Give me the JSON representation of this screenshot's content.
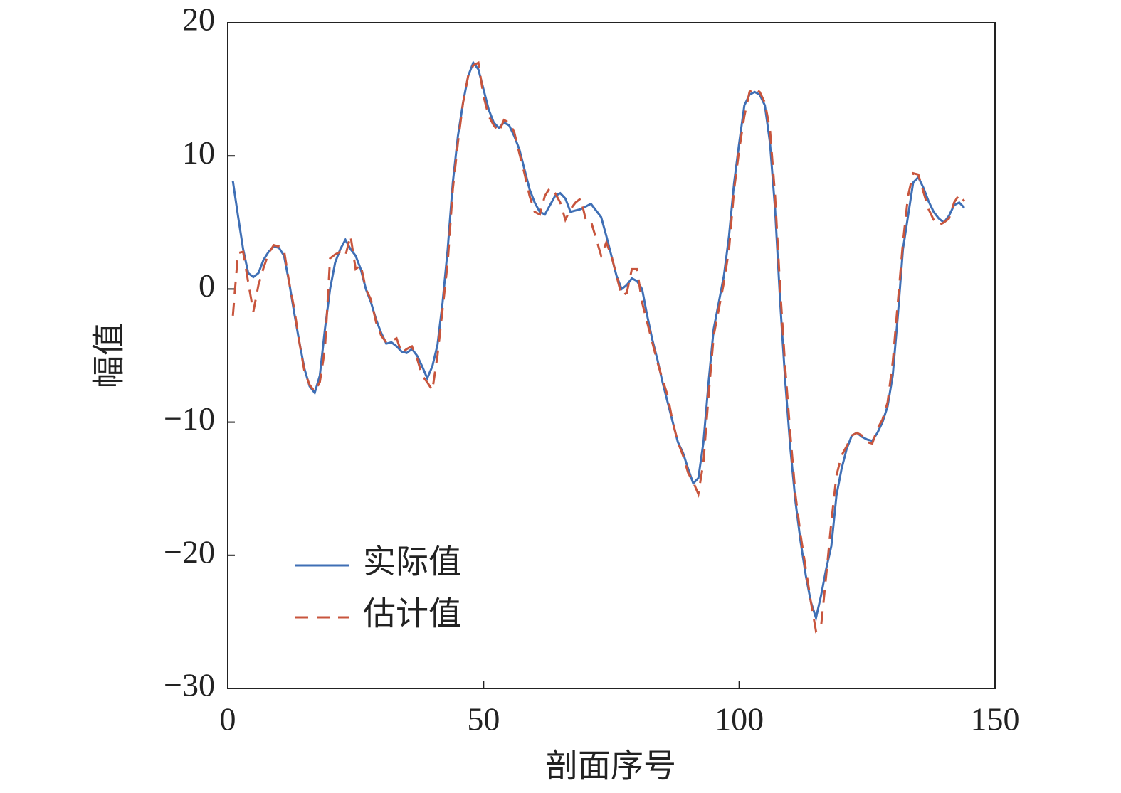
{
  "chart_data": {
    "type": "line",
    "xlabel": "剖面序号",
    "ylabel": "幅值",
    "xlim": [
      0,
      150
    ],
    "xticks": [
      0,
      50,
      100,
      150
    ],
    "ylim": [
      -30,
      20
    ],
    "yticks": [
      {
        "value": -30,
        "label": "−30"
      },
      {
        "value": -20,
        "label": "−20"
      },
      {
        "value": -10,
        "label": "−10"
      },
      0,
      10,
      20
    ],
    "legend": "lower left",
    "x": [
      1,
      2,
      3,
      4,
      5,
      6,
      7,
      8,
      9,
      10,
      11,
      12,
      13,
      14,
      15,
      16,
      17,
      18,
      19,
      20,
      21,
      22,
      23,
      24,
      25,
      26,
      27,
      28,
      29,
      30,
      31,
      32,
      33,
      34,
      35,
      36,
      37,
      38,
      39,
      40,
      41,
      42,
      43,
      44,
      45,
      46,
      47,
      48,
      49,
      50,
      51,
      52,
      53,
      54,
      55,
      56,
      57,
      58,
      59,
      60,
      61,
      62,
      63,
      64,
      65,
      66,
      67,
      68,
      69,
      70,
      71,
      72,
      73,
      74,
      75,
      76,
      77,
      78,
      79,
      80,
      81,
      82,
      83,
      84,
      85,
      86,
      87,
      88,
      89,
      90,
      91,
      92,
      93,
      94,
      95,
      96,
      97,
      98,
      99,
      100,
      101,
      102,
      103,
      104,
      105,
      106,
      107,
      108,
      109,
      110,
      111,
      112,
      113,
      114,
      115,
      116,
      117,
      118,
      119,
      120,
      121,
      122,
      123,
      124,
      125,
      126,
      127,
      128,
      129,
      130,
      131,
      132,
      133,
      134,
      135,
      136,
      137,
      138,
      139,
      140,
      141,
      142,
      143,
      144
    ],
    "series": [
      {
        "name": "实际值",
        "color": "#3f6fb5",
        "linestyle": "solid",
        "values": [
          8.1,
          5.5,
          3,
          1.2,
          0.9,
          1.2,
          2.2,
          2.8,
          3.2,
          3.1,
          2.5,
          0.5,
          -1.8,
          -4,
          -6,
          -7.3,
          -7.8,
          -6.5,
          -3,
          0,
          2,
          3,
          3.7,
          3,
          2.5,
          1.5,
          0,
          -1,
          -2.3,
          -3.3,
          -4.1,
          -4,
          -4.3,
          -4.7,
          -4.8,
          -4.5,
          -5,
          -5.8,
          -6.7,
          -5.8,
          -4.2,
          -1,
          3,
          8,
          11.5,
          14,
          16,
          17,
          16.5,
          15,
          13.5,
          12.5,
          12.1,
          12.5,
          12.3,
          11.5,
          10.5,
          9,
          7.5,
          6.5,
          5.8,
          5.6,
          6.3,
          7,
          7.2,
          6.8,
          5.8,
          5.9,
          6,
          6.2,
          6.4,
          5.9,
          5.4,
          4,
          2.5,
          1,
          0,
          0.3,
          0.8,
          0.6,
          0,
          -2,
          -3.8,
          -5.3,
          -7,
          -8.5,
          -10,
          -11.5,
          -12.3,
          -13.5,
          -14.6,
          -14.2,
          -11.5,
          -7,
          -3,
          -1,
          1,
          4,
          8,
          11,
          13.8,
          14.6,
          14.8,
          14.6,
          13.8,
          11,
          6,
          -1,
          -7,
          -12,
          -16,
          -19,
          -21.5,
          -23.5,
          -24.7,
          -23,
          -21,
          -19.3,
          -15.5,
          -13.5,
          -12,
          -11,
          -10.8,
          -11.1,
          -11.3,
          -11.4,
          -10.8,
          -10,
          -8.8,
          -6.5,
          -2,
          3,
          5.5,
          8,
          8.4,
          7.6,
          6.6,
          5.8,
          5.3,
          5,
          5.5,
          6.3,
          6.5,
          6.1
        ]
      },
      {
        "name": "估计值",
        "color": "#c8553d",
        "linestyle": "dashed",
        "values": [
          -2,
          2.7,
          2.8,
          0.5,
          -1.7,
          0.3,
          1.6,
          2.7,
          3.3,
          3.2,
          2.9,
          0.5,
          -1.5,
          -4,
          -6.2,
          -7.2,
          -7.7,
          -7,
          -4.5,
          2.3,
          2.6,
          2.8,
          2.5,
          4,
          1.5,
          1.8,
          0,
          -0.8,
          -2.5,
          -3.5,
          -4,
          -3.9,
          -3.7,
          -4.8,
          -4.5,
          -4.3,
          -5.2,
          -6.5,
          -7,
          -7.6,
          -5,
          -1.5,
          2,
          7.5,
          11,
          14,
          16,
          16.8,
          17,
          14.5,
          13,
          12.3,
          11.8,
          12.7,
          12.5,
          11.8,
          10.2,
          8.7,
          7,
          5.8,
          5.6,
          7,
          7.6,
          7.2,
          6.5,
          5.2,
          6,
          6.5,
          6.8,
          5.2,
          5.1,
          3.8,
          2.5,
          3.5,
          2.5,
          1,
          -0.5,
          -0.3,
          1.5,
          1.5,
          -1,
          -2.5,
          -4,
          -5.5,
          -6.8,
          -8,
          -10,
          -11.5,
          -12.5,
          -13.8,
          -14.5,
          -15.4,
          -13,
          -8,
          -3.5,
          -1.5,
          0.5,
          3,
          7.5,
          10.5,
          13,
          14.8,
          15.1,
          14.8,
          14,
          12,
          7,
          0,
          -6,
          -11,
          -15.5,
          -18.5,
          -21,
          -23.5,
          -25.7,
          -25.3,
          -21.5,
          -17.5,
          -14,
          -12.5,
          -11.8,
          -11,
          -10.8,
          -11,
          -11.5,
          -11.6,
          -10.5,
          -9.8,
          -8.5,
          -5.5,
          -1,
          3.5,
          7,
          8.7,
          8.6,
          7.3,
          6,
          5.2,
          4.8,
          5,
          5.3,
          6.5,
          7.1,
          6.6
        ]
      }
    ]
  }
}
